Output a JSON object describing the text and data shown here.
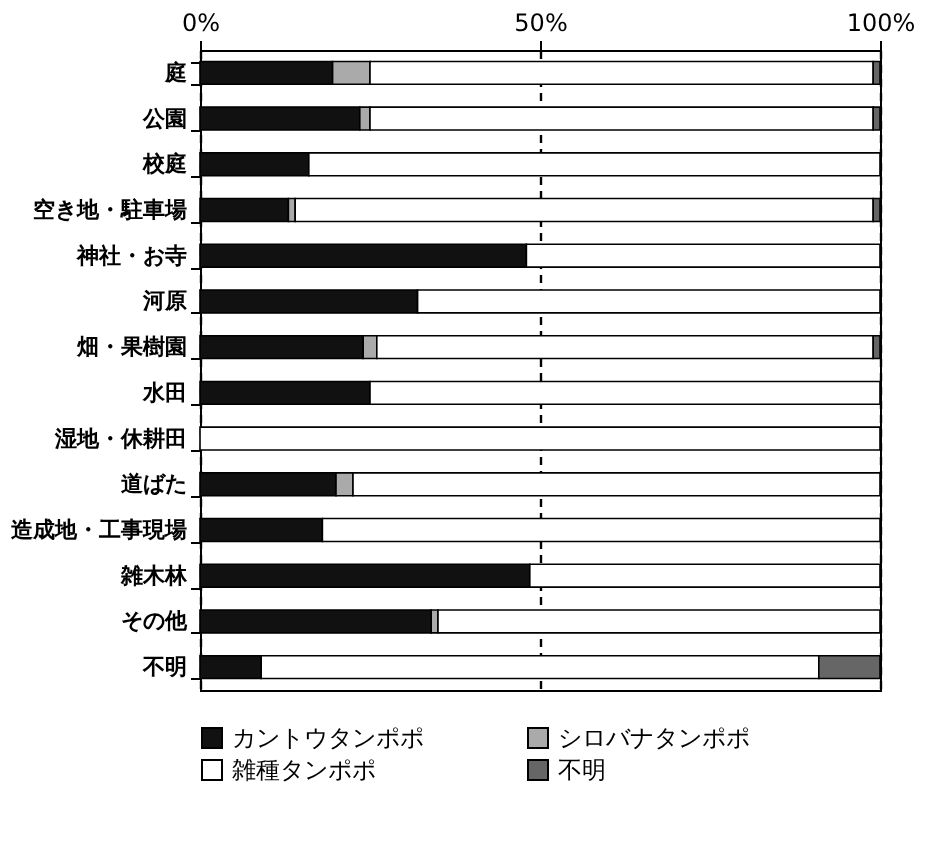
{
  "chart_data": {
    "type": "bar",
    "orientation": "horizontal",
    "stacked": true,
    "categories": [
      "庭",
      "公園",
      "校庭",
      "空き地・駐車場",
      "神社・お寺",
      "河原",
      "畑・果樹園",
      "水田",
      "湿地・休耕田",
      "道ばた",
      "造成地・工事現場",
      "雑木林",
      "その他",
      "不明"
    ],
    "series": [
      {
        "name": "カントウタンポポ",
        "color": "#111111",
        "values": [
          19.5,
          23.5,
          16,
          13,
          48,
          32,
          24,
          25,
          0,
          20,
          18,
          48.5,
          34,
          9
        ]
      },
      {
        "name": "シロバナタンポポ",
        "color": "#aaaaaa",
        "values": [
          5.5,
          1.5,
          0,
          1,
          0,
          0,
          2,
          0,
          0,
          2.5,
          0,
          0,
          1,
          0
        ]
      },
      {
        "name": "雑種タンポポ",
        "color": "#ffffff",
        "values": [
          74,
          74,
          84,
          85,
          52,
          68,
          73,
          75,
          100,
          77.5,
          82,
          51.5,
          65,
          82
        ]
      },
      {
        "name": "不明",
        "color": "#666666",
        "values": [
          1,
          1,
          0,
          1,
          0,
          0,
          1,
          0,
          0,
          0,
          0,
          0,
          0,
          9
        ]
      }
    ],
    "xlim": [
      0,
      100
    ],
    "xticks": [
      {
        "value": 0,
        "label": "0%"
      },
      {
        "value": 50,
        "label": "50%"
      },
      {
        "value": 100,
        "label": "100%"
      }
    ],
    "grid": "x",
    "legend": "bottom"
  }
}
